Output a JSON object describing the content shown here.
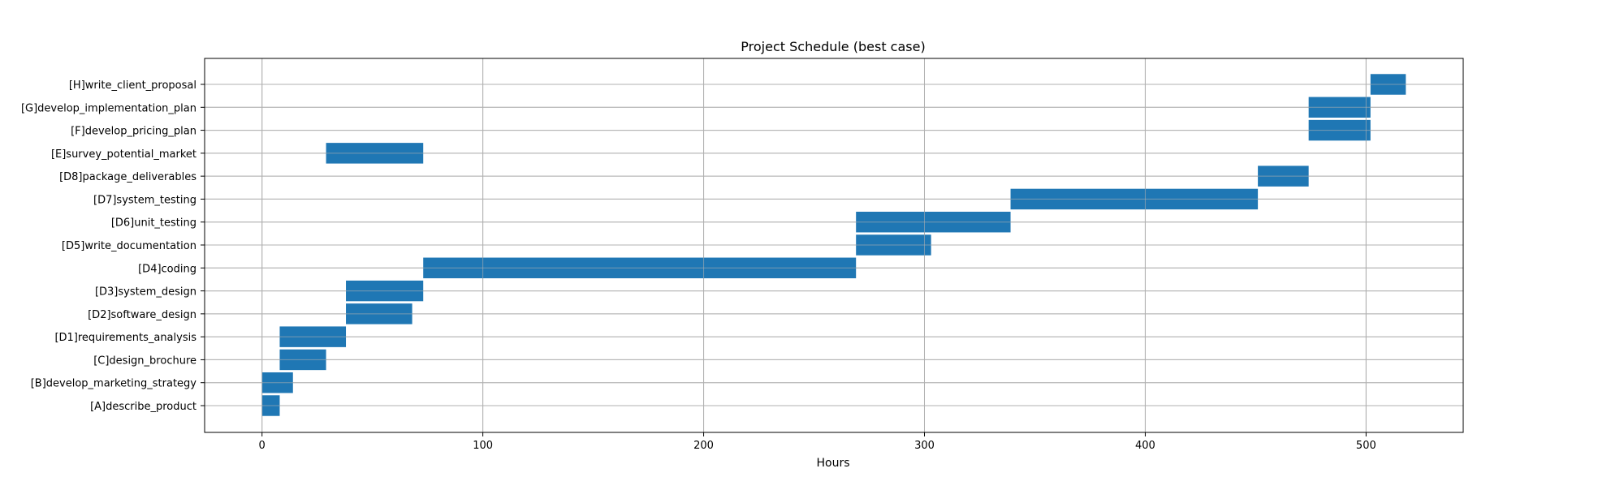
{
  "chart_data": {
    "type": "bar",
    "orientation": "horizontal",
    "title": "Project Schedule (best case)",
    "xlabel": "Hours",
    "ylabel": "",
    "xlim": [
      -26,
      544
    ],
    "xticks": [
      0,
      100,
      200,
      300,
      400,
      500
    ],
    "grid": true,
    "legend": "none",
    "bar_color": "#1f77b4",
    "tasks": [
      {
        "label": "[A]describe_product",
        "start": 0,
        "duration": 8
      },
      {
        "label": "[B]develop_marketing_strategy",
        "start": 0,
        "duration": 14
      },
      {
        "label": "[C]design_brochure",
        "start": 8,
        "duration": 21
      },
      {
        "label": "[D1]requirements_analysis",
        "start": 8,
        "duration": 30
      },
      {
        "label": "[D2]software_design",
        "start": 38,
        "duration": 30
      },
      {
        "label": "[D3]system_design",
        "start": 38,
        "duration": 35
      },
      {
        "label": "[D4]coding",
        "start": 73,
        "duration": 196
      },
      {
        "label": "[D5]write_documentation",
        "start": 269,
        "duration": 34
      },
      {
        "label": "[D6]unit_testing",
        "start": 269,
        "duration": 70
      },
      {
        "label": "[D7]system_testing",
        "start": 339,
        "duration": 112
      },
      {
        "label": "[D8]package_deliverables",
        "start": 451,
        "duration": 23
      },
      {
        "label": "[E]survey_potential_market",
        "start": 29,
        "duration": 44
      },
      {
        "label": "[F]develop_pricing_plan",
        "start": 474,
        "duration": 28
      },
      {
        "label": "[G]develop_implementation_plan",
        "start": 474,
        "duration": 28
      },
      {
        "label": "[H]write_client_proposal",
        "start": 502,
        "duration": 16
      }
    ]
  }
}
